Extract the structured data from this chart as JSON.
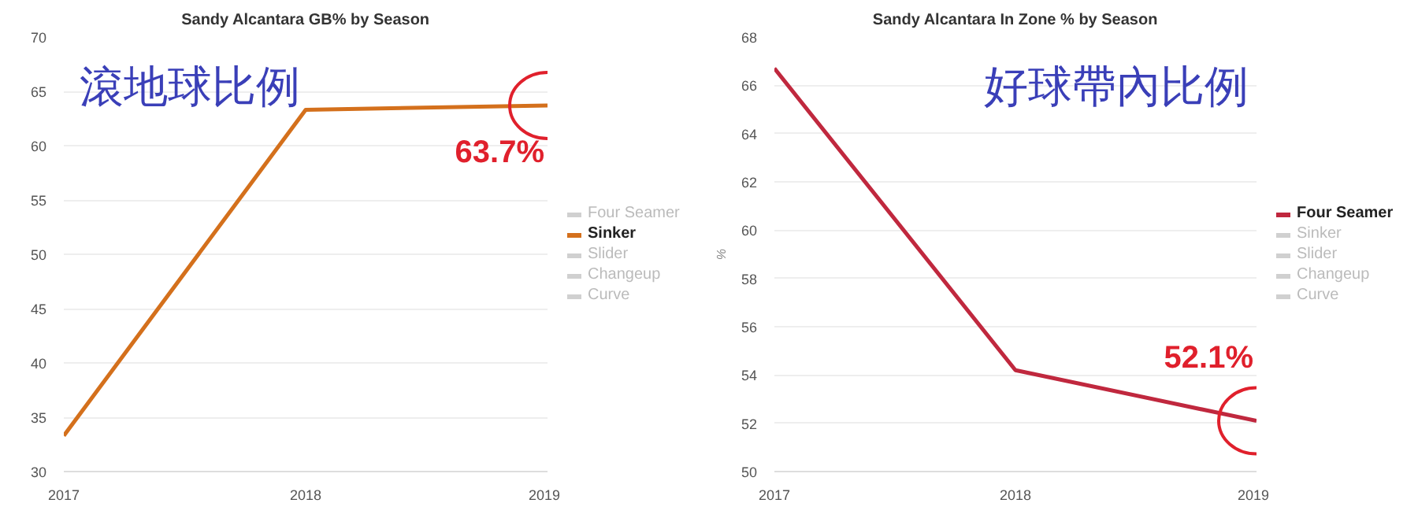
{
  "chart_data": [
    {
      "type": "line",
      "title": "Sandy Alcantara GB% by Season",
      "x": [
        2017,
        2018,
        2019
      ],
      "xlim": [
        2017,
        2019
      ],
      "xticks": [
        2017,
        2018,
        2019
      ],
      "ylim": [
        30,
        70
      ],
      "yticks": [
        30,
        35,
        40,
        45,
        50,
        55,
        60,
        65,
        70
      ],
      "grid": "y",
      "legend": "right",
      "series": [
        {
          "name": "Four Seamer",
          "color": "#d0d0d0",
          "values": [
            null,
            null,
            null
          ]
        },
        {
          "name": "Sinker",
          "color": "#d4701c",
          "values": [
            33.3,
            63.3,
            63.7
          ]
        },
        {
          "name": "Slider",
          "color": "#d0d0d0",
          "values": [
            null,
            null,
            null
          ]
        },
        {
          "name": "Changeup",
          "color": "#d0d0d0",
          "values": [
            null,
            null,
            null
          ]
        },
        {
          "name": "Curve",
          "color": "#d0d0d0",
          "values": [
            null,
            null,
            null
          ]
        }
      ],
      "annotations": [
        "滾地球比例",
        {
          "text": "63.7%",
          "x": 2019,
          "y": 63.7
        }
      ]
    },
    {
      "type": "line",
      "title": "Sandy Alcantara In Zone % by Season",
      "ylabel": "%",
      "x": [
        2017,
        2018,
        2019
      ],
      "xlim": [
        2017,
        2019
      ],
      "xticks": [
        2017,
        2018,
        2019
      ],
      "ylim": [
        50,
        68
      ],
      "yticks": [
        50,
        52,
        54,
        56,
        58,
        60,
        62,
        64,
        66,
        68
      ],
      "grid": "y",
      "legend": "right",
      "series": [
        {
          "name": "Four Seamer",
          "color": "#c0283e",
          "values": [
            66.7,
            54.2,
            52.1
          ]
        },
        {
          "name": "Sinker",
          "color": "#d0d0d0",
          "values": [
            null,
            null,
            null
          ]
        },
        {
          "name": "Slider",
          "color": "#d0d0d0",
          "values": [
            null,
            null,
            null
          ]
        },
        {
          "name": "Changeup",
          "color": "#d0d0d0",
          "values": [
            null,
            null,
            null
          ]
        },
        {
          "name": "Curve",
          "color": "#d0d0d0",
          "values": [
            null,
            null,
            null
          ]
        }
      ],
      "annotations": [
        "好球帶內比例",
        {
          "text": "52.1%",
          "x": 2019,
          "y": 52.1
        }
      ]
    }
  ]
}
